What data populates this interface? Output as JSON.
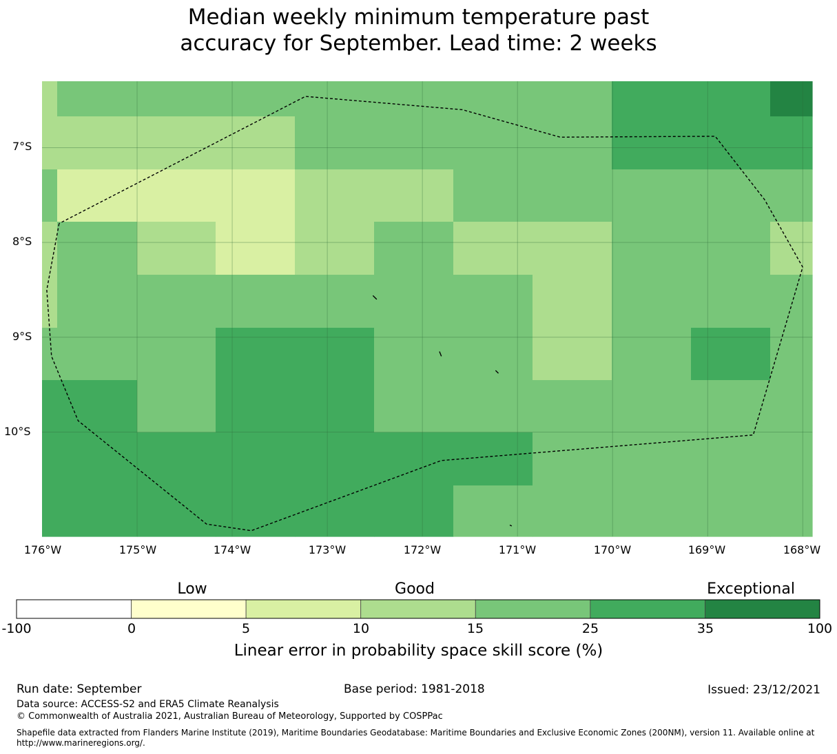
{
  "title_line1": "Median weekly minimum temperature past",
  "title_line2": "accuracy for September. Lead time: 2 weeks",
  "map": {
    "lon_range": [
      -176,
      -167.9
    ],
    "lat_range": [
      -11.1,
      -6.3
    ],
    "lon_ticks": [
      "176°W",
      "175°W",
      "174°W",
      "173°W",
      "172°W",
      "171°W",
      "170°W",
      "169°W",
      "168°W"
    ],
    "lat_ticks": [
      "7°S",
      "8°S",
      "9°S",
      "10°S"
    ],
    "grid_columns": 10,
    "grid_rows": 9,
    "skill_grid": [
      [
        4,
        4,
        4,
        4,
        4,
        4,
        4,
        5,
        5,
        6
      ],
      [
        3,
        3,
        3,
        4,
        4,
        4,
        4,
        5,
        5,
        5
      ],
      [
        2,
        2,
        2,
        3,
        3,
        4,
        4,
        4,
        4,
        4
      ],
      [
        4,
        3,
        2,
        3,
        4,
        3,
        3,
        4,
        4,
        3
      ],
      [
        4,
        4,
        4,
        4,
        4,
        4,
        3,
        4,
        4,
        4
      ],
      [
        4,
        4,
        5,
        5,
        4,
        4,
        3,
        4,
        5,
        4
      ],
      [
        5,
        4,
        5,
        5,
        4,
        4,
        4,
        4,
        4,
        4
      ],
      [
        5,
        5,
        5,
        5,
        5,
        5,
        4,
        4,
        4,
        4
      ],
      [
        5,
        5,
        5,
        5,
        5,
        4,
        4,
        4,
        4,
        4
      ]
    ],
    "boundary_lonlat": [
      [
        -175.82,
        -7.8
      ],
      [
        -175.95,
        -8.5
      ],
      [
        -175.9,
        -9.2
      ],
      [
        -175.62,
        -9.88
      ],
      [
        -174.27,
        -10.97
      ],
      [
        -173.8,
        -11.04
      ],
      [
        -171.8,
        -10.3
      ],
      [
        -168.52,
        -10.03
      ],
      [
        -168.0,
        -8.26
      ],
      [
        -168.4,
        -7.55
      ],
      [
        -168.92,
        -6.88
      ],
      [
        -170.55,
        -6.89
      ],
      [
        -171.58,
        -6.6
      ],
      [
        -173.23,
        -6.46
      ],
      [
        -175.82,
        -7.8
      ]
    ],
    "islands_lonlat": [
      [
        [
          -172.52,
          -8.56
        ],
        [
          -172.48,
          -8.6
        ]
      ],
      [
        [
          -171.82,
          -9.15
        ],
        [
          -171.8,
          -9.2
        ]
      ],
      [
        [
          -171.23,
          -9.35
        ],
        [
          -171.2,
          -9.38
        ]
      ],
      [
        [
          -171.08,
          -10.98
        ],
        [
          -171.06,
          -10.99
        ]
      ]
    ]
  },
  "colorbar": {
    "categories": [
      "Low",
      "Good",
      "Exceptional"
    ],
    "ticks": [
      "-100",
      "0",
      "5",
      "10",
      "15",
      "25",
      "35",
      "100"
    ],
    "colors": [
      "#ffffff",
      "#ffffcc",
      "#d9f0a3",
      "#addd8e",
      "#78c679",
      "#41ab5d",
      "#238443"
    ],
    "label": "Linear error in probability space skill score (%)"
  },
  "footer": {
    "run_date": "Run date: September",
    "base_period": "Base period: 1981-2018",
    "issued": "Issued: 23/12/2021",
    "data_source": "Data source: ACCESS-S2 and ERA5 Climate Reanalysis",
    "copyright": "© Commonwealth of Australia 2021, Australian Bureau of Meteorology, Supported by COSPPac",
    "shapefile_line1": "Shapefile data extracted from Flanders Marine Institute (2019), Maritime Boundaries Geodatabase: Maritime Boundaries and Exclusive Economic Zones (200NM), version 11. Available online at",
    "shapefile_line2": "http://www.marineregions.org/."
  }
}
